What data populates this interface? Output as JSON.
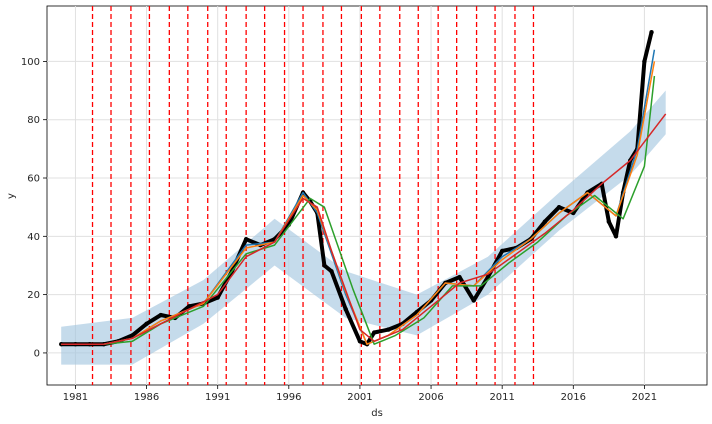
{
  "chart_data": {
    "type": "line",
    "title": "",
    "xlabel": "ds",
    "ylabel": "y",
    "xlim": [
      1979.0,
      2025.4
    ],
    "ylim": [
      -11,
      119
    ],
    "grid": true,
    "x_ticks": [
      1981,
      1986,
      1991,
      1996,
      2001,
      2006,
      2011,
      2016,
      2021
    ],
    "y_ticks": [
      0,
      20,
      40,
      60,
      80,
      100
    ],
    "changepoints": [
      1982.2,
      1983.5,
      1984.9,
      1986.2,
      1987.6,
      1988.9,
      1990.3,
      1991.6,
      1993.0,
      1994.3,
      1995.7,
      1997.0,
      1998.4,
      1999.7,
      2001.1,
      2002.4,
      2003.8,
      2005.1,
      2006.5,
      2007.8,
      2009.2,
      2010.5,
      2011.9,
      2013.2
    ],
    "colors": {
      "actual": "#000000",
      "trend": "#d62728",
      "forecast": "#1f77b4",
      "smooth_orange": "#ff7f0e",
      "smooth_green": "#2ca02c",
      "band": "#a6c8e0",
      "changepoint": "#ff0000"
    },
    "series": [
      {
        "role": "actual",
        "x": [
          1980.0,
          1981.0,
          1982.0,
          1983.0,
          1984.0,
          1985.0,
          1986.0,
          1987.0,
          1988.0,
          1989.0,
          1990.0,
          1991.0,
          1992.0,
          1993.0,
          1994.0,
          1995.0,
          1996.0,
          1997.0,
          1997.5,
          1998.0,
          1998.5,
          1999.0,
          2000.0,
          2001.0,
          2001.5,
          2002.0,
          2003.0,
          2004.0,
          2005.0,
          2006.0,
          2007.0,
          2008.0,
          2009.0,
          2010.0,
          2011.0,
          2012.0,
          2013.0,
          2014.0,
          2015.0,
          2016.0,
          2017.0,
          2018.0,
          2018.5,
          2019.0,
          2019.5,
          2020.0,
          2020.5,
          2021.0,
          2021.5
        ],
        "y": [
          3,
          3,
          3,
          3,
          4,
          6,
          10,
          13,
          12,
          16,
          17,
          19,
          28,
          39,
          37,
          39,
          44,
          55,
          52,
          48,
          30,
          28,
          15,
          4,
          3,
          7,
          8,
          10,
          14,
          18,
          24,
          26,
          18,
          26,
          35,
          36,
          39,
          45,
          50,
          48,
          55,
          58,
          45,
          40,
          55,
          66,
          70,
          100,
          110
        ]
      },
      {
        "role": "forecast",
        "x": [
          1980.0,
          1983.0,
          1985.0,
          1987.0,
          1990.0,
          1993.0,
          1995.0,
          1997.0,
          1998.0,
          2000.0,
          2001.5,
          2003.0,
          2005.0,
          2007.0,
          2009.0,
          2011.0,
          2013.0,
          2015.0,
          2017.0,
          2019.0,
          2020.5,
          2021.7
        ],
        "y": [
          3,
          3,
          5,
          11,
          17,
          37,
          38,
          55,
          48,
          20,
          3,
          6,
          13,
          24,
          23,
          33,
          39,
          48,
          55,
          47,
          70,
          104
        ]
      },
      {
        "role": "smooth_orange",
        "x": [
          1980.0,
          1983.0,
          1985.0,
          1987.0,
          1990.0,
          1993.0,
          1995.0,
          1997.0,
          1998.0,
          2000.0,
          2001.5,
          2003.0,
          2005.0,
          2007.0,
          2009.0,
          2011.0,
          2013.0,
          2015.0,
          2017.0,
          2019.0,
          2020.5,
          2021.7
        ],
        "y": [
          3,
          3,
          5,
          11,
          17,
          36,
          38,
          54,
          49,
          21,
          3,
          6,
          13,
          24,
          23,
          32,
          39,
          48,
          55,
          47,
          68,
          100
        ]
      },
      {
        "role": "smooth_green",
        "x": [
          1980.0,
          1983.0,
          1985.0,
          1987.0,
          1990.0,
          1993.0,
          1995.0,
          1997.5,
          1998.5,
          2000.5,
          2002.0,
          2003.5,
          2005.5,
          2007.5,
          2009.5,
          2011.5,
          2013.5,
          2015.5,
          2017.5,
          2019.5,
          2021.0,
          2021.7
        ],
        "y": [
          3,
          3,
          4,
          10,
          16,
          34,
          37,
          53,
          50,
          22,
          3,
          6,
          12,
          23,
          23,
          31,
          38,
          47,
          54,
          46,
          64,
          95
        ]
      },
      {
        "role": "trend",
        "x": [
          1980.0,
          1983.0,
          1985.0,
          1987.0,
          1989.0,
          1991.0,
          1993.0,
          1995.0,
          1997.0,
          1998.0,
          1999.0,
          2001.0,
          2002.0,
          2004.0,
          2006.0,
          2008.0,
          2010.0,
          2012.0,
          2014.0,
          2016.0,
          2018.0,
          2020.0,
          2022.5
        ],
        "y": [
          3,
          3,
          5,
          10,
          15,
          20,
          33,
          38,
          53,
          50,
          35,
          8,
          4,
          8,
          16,
          24,
          27,
          34,
          41,
          49,
          58,
          66,
          82
        ]
      },
      {
        "role": "band",
        "x": [
          1980.0,
          1985.0,
          1990.0,
          1995.0,
          2000.0,
          2005.0,
          2010.0,
          2015.0,
          2020.0,
          2022.5
        ],
        "upper": [
          9,
          12,
          25,
          46,
          28,
          20,
          33,
          55,
          76,
          90
        ],
        "lower": [
          -4,
          -4,
          10,
          30,
          12,
          6,
          20,
          42,
          61,
          75
        ]
      }
    ]
  }
}
